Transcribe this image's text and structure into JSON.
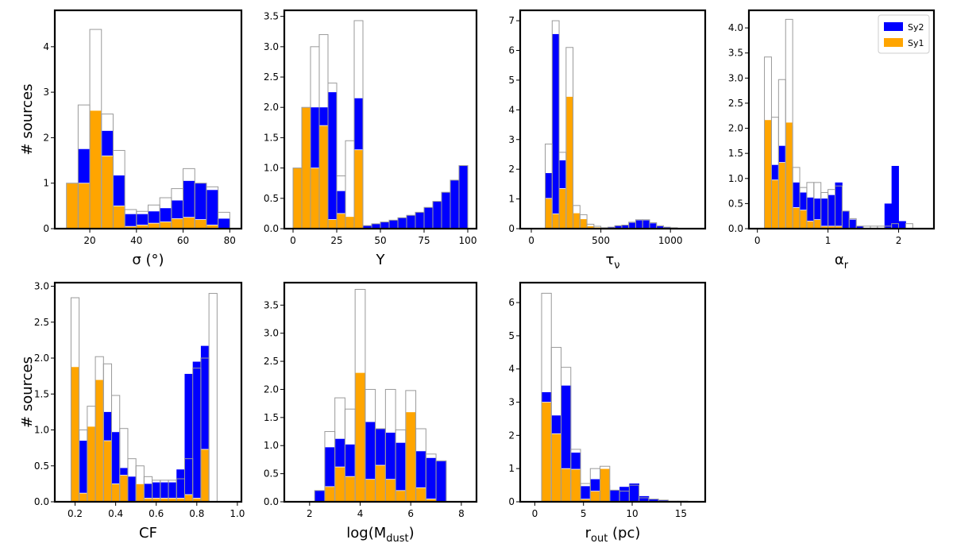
{
  "colors": {
    "sy2": "#0000ff",
    "sy1": "#ffa500",
    "total": "#9a9a9a"
  },
  "legend": {
    "entries": [
      "Sy2",
      "Sy1"
    ],
    "location": "top-right",
    "panel": 3
  },
  "chart_data": [
    {
      "type": "bar",
      "title": "",
      "xlabel": "σ (°)",
      "ylabel": "# sources",
      "xlim": [
        5,
        85
      ],
      "ylim": [
        0,
        4.8
      ],
      "xticks": [
        20,
        40,
        60,
        80
      ],
      "yticks": [
        0,
        1,
        2,
        3,
        4
      ],
      "bin_edges": [
        10,
        15,
        20,
        25,
        30,
        35,
        40,
        45,
        50,
        55,
        60,
        65,
        70,
        75,
        80
      ],
      "series": [
        {
          "name": "Total",
          "values": [
            1.0,
            2.72,
            4.38,
            2.52,
            1.72,
            0.42,
            0.38,
            0.52,
            0.68,
            0.88,
            1.32,
            1.0,
            0.92,
            0.36
          ]
        },
        {
          "name": "Sy2",
          "values": [
            1.0,
            1.75,
            1.97,
            2.15,
            1.17,
            0.32,
            0.32,
            0.38,
            0.45,
            0.62,
            1.05,
            1.0,
            0.85,
            0.22
          ]
        },
        {
          "name": "Sy1",
          "values": [
            1.0,
            1.0,
            2.6,
            1.6,
            0.5,
            0.05,
            0.08,
            0.12,
            0.15,
            0.22,
            0.25,
            0.2,
            0.08,
            0.0
          ]
        }
      ]
    },
    {
      "type": "bar",
      "title": "",
      "xlabel": "Y",
      "ylabel": "",
      "xlim": [
        -5,
        105
      ],
      "ylim": [
        0,
        3.6
      ],
      "xticks": [
        0,
        25,
        50,
        75,
        100
      ],
      "yticks": [
        0,
        0.5,
        1.0,
        1.5,
        2.0,
        2.5,
        3.0,
        3.5
      ],
      "bin_edges": [
        0,
        5,
        10,
        15,
        20,
        25,
        30,
        35,
        40,
        45,
        50,
        55,
        60,
        65,
        70,
        75,
        80,
        85,
        90,
        95,
        100
      ],
      "series": [
        {
          "name": "Total",
          "values": [
            1.0,
            2.0,
            3.0,
            3.2,
            2.4,
            0.87,
            1.45,
            3.43,
            0.05,
            0.08,
            0.11,
            0.14,
            0.18,
            0.22,
            0.27,
            0.35,
            0.45,
            0.6,
            0.8,
            1.04
          ]
        },
        {
          "name": "Sy2",
          "values": [
            0.0,
            0.0,
            2.0,
            2.0,
            2.25,
            0.62,
            0.0,
            2.15,
            0.05,
            0.08,
            0.11,
            0.14,
            0.18,
            0.22,
            0.27,
            0.35,
            0.45,
            0.6,
            0.8,
            1.04
          ]
        },
        {
          "name": "Sy1",
          "values": [
            1.0,
            2.0,
            1.0,
            1.7,
            0.15,
            0.25,
            0.2,
            1.3,
            0.0,
            0.0,
            0.0,
            0.0,
            0.0,
            0.0,
            0.0,
            0.0,
            0.0,
            0.0,
            0.0,
            0.0
          ]
        }
      ]
    },
    {
      "type": "bar",
      "title": "",
      "xlabel": "τν",
      "ylabel": "",
      "xlim": [
        -80,
        1250
      ],
      "ylim": [
        0,
        7.35
      ],
      "xticks": [
        0,
        500,
        1000
      ],
      "yticks": [
        0,
        1,
        2,
        3,
        4,
        5,
        6,
        7
      ],
      "bin_edges": [
        100,
        150,
        200,
        250,
        300,
        350,
        400,
        450,
        500,
        550,
        600,
        650,
        700,
        750,
        800,
        850,
        900,
        950,
        1000,
        1050,
        1100
      ],
      "series": [
        {
          "name": "Total",
          "values": [
            2.85,
            7.0,
            2.57,
            6.1,
            0.78,
            0.47,
            0.15,
            0.08,
            0.03,
            0.05,
            0.1,
            0.12,
            0.22,
            0.3,
            0.3,
            0.2,
            0.1,
            0.05,
            0.03,
            0.0
          ]
        },
        {
          "name": "Sy2",
          "values": [
            1.87,
            6.55,
            2.3,
            1.62,
            0.25,
            0.15,
            0.06,
            0.03,
            0.03,
            0.05,
            0.1,
            0.12,
            0.2,
            0.28,
            0.28,
            0.18,
            0.08,
            0.04,
            0.02,
            0.0
          ]
        },
        {
          "name": "Sy1",
          "values": [
            1.02,
            0.5,
            1.35,
            4.45,
            0.53,
            0.33,
            0.09,
            0.05,
            0.0,
            0.0,
            0.0,
            0.0,
            0.0,
            0.0,
            0.0,
            0.0,
            0.0,
            0.0,
            0.0,
            0.0
          ]
        }
      ]
    },
    {
      "type": "bar",
      "title": "",
      "xlabel": "αr",
      "ylabel": "",
      "xlim": [
        -0.12,
        2.5
      ],
      "ylim": [
        0,
        4.35
      ],
      "xticks": [
        0,
        1,
        2
      ],
      "yticks": [
        0,
        0.5,
        1.0,
        1.5,
        2.0,
        2.5,
        3.0,
        3.5,
        4.0
      ],
      "bin_edges": [
        0.1,
        0.2,
        0.3,
        0.4,
        0.5,
        0.6,
        0.7,
        0.8,
        0.9,
        1.0,
        1.1,
        1.2,
        1.3,
        1.4,
        1.5,
        1.6,
        1.7,
        1.8,
        1.9,
        2.0,
        2.1,
        2.2
      ],
      "series": [
        {
          "name": "Total",
          "values": [
            3.42,
            2.22,
            2.97,
            4.17,
            1.22,
            0.82,
            0.92,
            0.92,
            0.72,
            0.78,
            0.85,
            0.35,
            0.2,
            0.05,
            0.05,
            0.05,
            0.05,
            0.05,
            0.1,
            0.0,
            0.1
          ]
        },
        {
          "name": "Sy2",
          "values": [
            1.25,
            1.27,
            1.65,
            2.05,
            0.92,
            0.72,
            0.62,
            0.6,
            0.6,
            0.67,
            0.92,
            0.35,
            0.18,
            0.05,
            0.0,
            0.0,
            0.0,
            0.5,
            1.25,
            0.15,
            0.0
          ]
        },
        {
          "name": "Sy1",
          "values": [
            2.17,
            0.97,
            1.32,
            2.12,
            0.42,
            0.37,
            0.15,
            0.18,
            0.05,
            0.05,
            0.05,
            0.0,
            0.0,
            0.0,
            0.0,
            0.0,
            0.0,
            0.0,
            0.0,
            0.0,
            0.0
          ]
        }
      ]
    },
    {
      "type": "bar",
      "title": "",
      "xlabel": "CF",
      "ylabel": "# sources",
      "xlim": [
        0.1,
        1.02
      ],
      "ylim": [
        0,
        3.05
      ],
      "xticks": [
        0.2,
        0.4,
        0.6,
        0.8,
        1.0
      ],
      "yticks": [
        0,
        0.5,
        1.0,
        1.5,
        2.0,
        2.5,
        3.0
      ],
      "bin_edges": [
        0.18,
        0.22,
        0.26,
        0.3,
        0.34,
        0.38,
        0.42,
        0.46,
        0.5,
        0.54,
        0.58,
        0.62,
        0.66,
        0.7,
        0.74,
        0.78,
        0.82,
        0.86,
        0.9,
        0.94,
        0.98
      ],
      "series": [
        {
          "name": "Total",
          "values": [
            2.84,
            1.0,
            1.33,
            2.02,
            1.92,
            1.48,
            1.02,
            0.6,
            0.5,
            0.35,
            0.3,
            0.3,
            0.3,
            0.32,
            0.6,
            1.86,
            2.0,
            2.9,
            0.0,
            0.0
          ]
        },
        {
          "name": "Sy2",
          "values": [
            0.95,
            0.85,
            0.55,
            1.02,
            1.25,
            0.97,
            0.47,
            0.35,
            0.22,
            0.25,
            0.27,
            0.27,
            0.27,
            0.45,
            1.78,
            1.95,
            2.17,
            0.0,
            0.0,
            0.0
          ]
        },
        {
          "name": "Sy1",
          "values": [
            1.88,
            0.12,
            1.05,
            1.7,
            0.85,
            0.25,
            0.37,
            0.0,
            0.25,
            0.05,
            0.05,
            0.05,
            0.05,
            0.05,
            0.1,
            0.05,
            0.73,
            0.0,
            0.0,
            0.0
          ]
        }
      ]
    },
    {
      "type": "bar",
      "title": "",
      "xlabel": "log(Mdust)",
      "ylabel": "",
      "xlim": [
        1,
        8.6
      ],
      "ylim": [
        0,
        3.9
      ],
      "xticks": [
        2,
        4,
        6,
        8
      ],
      "yticks": [
        0,
        0.5,
        1.0,
        1.5,
        2.0,
        2.5,
        3.0,
        3.5
      ],
      "bin_edges": [
        2.2,
        2.6,
        3.0,
        3.4,
        3.8,
        4.2,
        4.6,
        5.0,
        5.4,
        5.8,
        6.2,
        6.6,
        7.0,
        7.4,
        7.8
      ],
      "series": [
        {
          "name": "Total",
          "values": [
            0.2,
            1.25,
            1.85,
            1.65,
            3.78,
            2.0,
            1.3,
            2.0,
            1.28,
            1.98,
            1.3,
            0.85,
            0.73,
            0.0
          ]
        },
        {
          "name": "Sy2",
          "values": [
            0.2,
            0.97,
            1.12,
            1.02,
            1.48,
            1.42,
            1.3,
            1.23,
            1.05,
            1.35,
            0.9,
            0.78,
            0.72,
            0.0
          ]
        },
        {
          "name": "Sy1",
          "values": [
            0.0,
            0.27,
            0.62,
            0.45,
            2.3,
            0.4,
            0.65,
            0.4,
            0.2,
            1.6,
            0.25,
            0.05,
            0.0,
            0.0
          ]
        }
      ]
    },
    {
      "type": "bar",
      "title": "",
      "xlabel": "rout (pc)",
      "ylabel": "",
      "xlim": [
        -1.5,
        17.5
      ],
      "ylim": [
        0,
        6.6
      ],
      "xticks": [
        0,
        5,
        10,
        15
      ],
      "yticks": [
        0,
        1,
        2,
        3,
        4,
        5,
        6
      ],
      "bin_edges": [
        0.7,
        1.7,
        2.7,
        3.7,
        4.7,
        5.7,
        6.7,
        7.7,
        8.7,
        9.7,
        10.7,
        11.7,
        12.7,
        13.7,
        14.7,
        15.7
      ],
      "series": [
        {
          "name": "Total",
          "values": [
            6.28,
            4.65,
            4.05,
            1.58,
            0.55,
            1.0,
            1.07,
            0.35,
            0.32,
            0.5,
            0.12,
            0.08,
            0.05,
            0.02,
            0.02
          ]
        },
        {
          "name": "Sy2",
          "values": [
            3.3,
            2.6,
            3.5,
            1.48,
            0.47,
            0.68,
            0.5,
            0.35,
            0.45,
            0.55,
            0.17,
            0.08,
            0.05,
            0.02,
            0.02
          ]
        },
        {
          "name": "Sy1",
          "values": [
            3.0,
            2.05,
            1.0,
            0.98,
            0.08,
            0.32,
            1.0,
            0.0,
            0.0,
            0.0,
            0.0,
            0.0,
            0.0,
            0.0,
            0.0
          ]
        }
      ]
    }
  ]
}
